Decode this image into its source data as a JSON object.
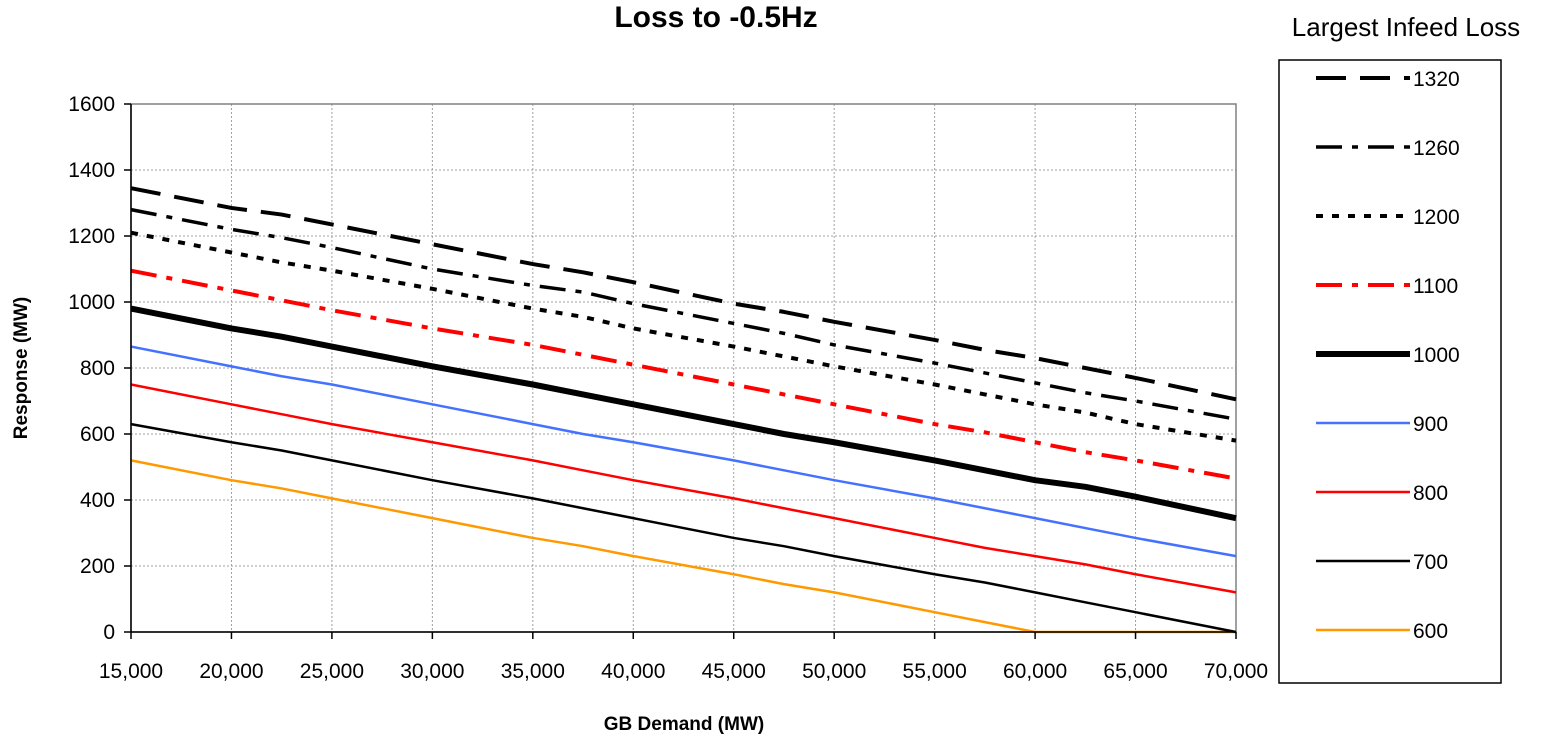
{
  "chart_data": {
    "type": "line",
    "title": "Loss to -0.5Hz",
    "xlabel": "GB Demand (MW)",
    "ylabel": "Response (MW)",
    "xlim": [
      15000,
      70000
    ],
    "ylim": [
      0,
      1600
    ],
    "xticks": [
      15000,
      20000,
      25000,
      30000,
      35000,
      40000,
      45000,
      50000,
      55000,
      60000,
      65000,
      70000
    ],
    "xtick_labels": [
      "15,000",
      "20,000",
      "25,000",
      "30,000",
      "35,000",
      "40,000",
      "45,000",
      "50,000",
      "55,000",
      "60,000",
      "65,000",
      "70,000"
    ],
    "yticks": [
      0,
      200,
      400,
      600,
      800,
      1000,
      1200,
      1400,
      1600
    ],
    "ytick_labels": [
      "0",
      "200",
      "400",
      "600",
      "800",
      "1000",
      "1200",
      "1400",
      "1600"
    ],
    "grid": "on, dotted gray",
    "legend_title": "Largest Infeed Loss",
    "legend_position": "right",
    "x": [
      15000,
      20000,
      22500,
      25000,
      30000,
      35000,
      37500,
      40000,
      45000,
      47500,
      50000,
      55000,
      57500,
      60000,
      62500,
      65000,
      70000
    ],
    "series": [
      {
        "name": "1320",
        "color": "#000000",
        "style": "long-dash-thick",
        "values": [
          1345,
          1285,
          1265,
          1235,
          1175,
          1115,
          1090,
          1060,
          995,
          970,
          940,
          885,
          855,
          830,
          800,
          770,
          705
        ]
      },
      {
        "name": "1260",
        "color": "#000000",
        "style": "dash-dot",
        "values": [
          1280,
          1220,
          1195,
          1165,
          1100,
          1050,
          1030,
          995,
          935,
          905,
          870,
          815,
          785,
          755,
          725,
          700,
          645
        ]
      },
      {
        "name": "1200",
        "color": "#000000",
        "style": "dotted",
        "values": [
          1210,
          1150,
          1120,
          1095,
          1040,
          980,
          955,
          920,
          865,
          835,
          805,
          750,
          720,
          690,
          665,
          630,
          580
        ]
      },
      {
        "name": "1100",
        "color": "#ff0000",
        "style": "dash-dot-thick",
        "values": [
          1095,
          1035,
          1005,
          975,
          920,
          870,
          840,
          810,
          750,
          720,
          690,
          630,
          605,
          575,
          545,
          520,
          465
        ]
      },
      {
        "name": "1000",
        "color": "#000000",
        "style": "solid-thick",
        "values": [
          980,
          920,
          895,
          865,
          805,
          750,
          720,
          690,
          630,
          600,
          575,
          520,
          490,
          460,
          440,
          410,
          345
        ]
      },
      {
        "name": "900",
        "color": "#4472ff",
        "style": "solid",
        "values": [
          865,
          805,
          775,
          750,
          690,
          630,
          600,
          575,
          520,
          490,
          460,
          405,
          375,
          345,
          315,
          285,
          230
        ]
      },
      {
        "name": "800",
        "color": "#ff0000",
        "style": "solid",
        "values": [
          750,
          690,
          660,
          630,
          575,
          520,
          490,
          460,
          405,
          375,
          345,
          285,
          255,
          230,
          205,
          175,
          120
        ]
      },
      {
        "name": "700",
        "color": "#000000",
        "style": "solid",
        "values": [
          630,
          575,
          550,
          520,
          460,
          405,
          375,
          345,
          285,
          260,
          230,
          175,
          150,
          120,
          90,
          60,
          0
        ]
      },
      {
        "name": "600",
        "color": "#ff9900",
        "style": "solid",
        "values": [
          520,
          460,
          435,
          405,
          345,
          285,
          260,
          230,
          175,
          145,
          120,
          60,
          30,
          0,
          0,
          0,
          0
        ]
      }
    ]
  }
}
